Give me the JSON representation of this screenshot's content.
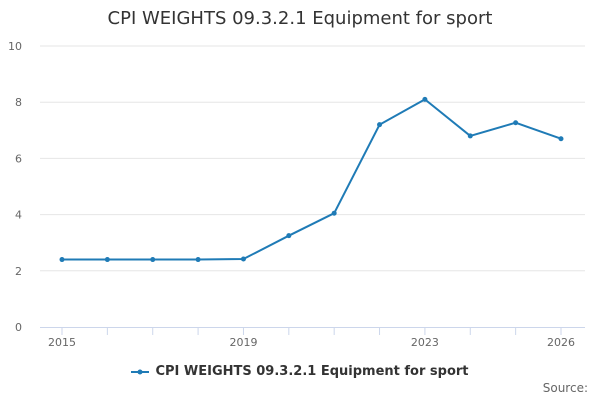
{
  "colors": {
    "series": "#1f7bb6",
    "grid": "#e6e6e6",
    "axis": "#ccd6eb",
    "tick_text": "#666666",
    "title_text": "#333333"
  },
  "source_label": "Source:",
  "chart_data": {
    "type": "line",
    "title": "CPI WEIGHTS 09.3.2.1 Equipment for sport",
    "xlabel": "",
    "ylabel": "",
    "x": [
      2015,
      2016,
      2017,
      2018,
      2019,
      2020,
      2021,
      2022,
      2023,
      2024,
      2025,
      2026
    ],
    "xlim": [
      2015,
      2026
    ],
    "ylim": [
      0,
      10
    ],
    "x_tick_labels": [
      2015,
      2019,
      2023,
      2026
    ],
    "y_ticks": [
      0,
      2,
      4,
      6,
      8,
      10
    ],
    "grid": "horizontal",
    "legend": "bottom-center",
    "series": [
      {
        "name": "CPI WEIGHTS 09.3.2.1 Equipment for sport",
        "values": [
          2.4,
          2.4,
          2.4,
          2.4,
          2.42,
          3.25,
          4.05,
          7.2,
          8.1,
          6.8,
          7.27,
          6.7
        ]
      }
    ]
  }
}
